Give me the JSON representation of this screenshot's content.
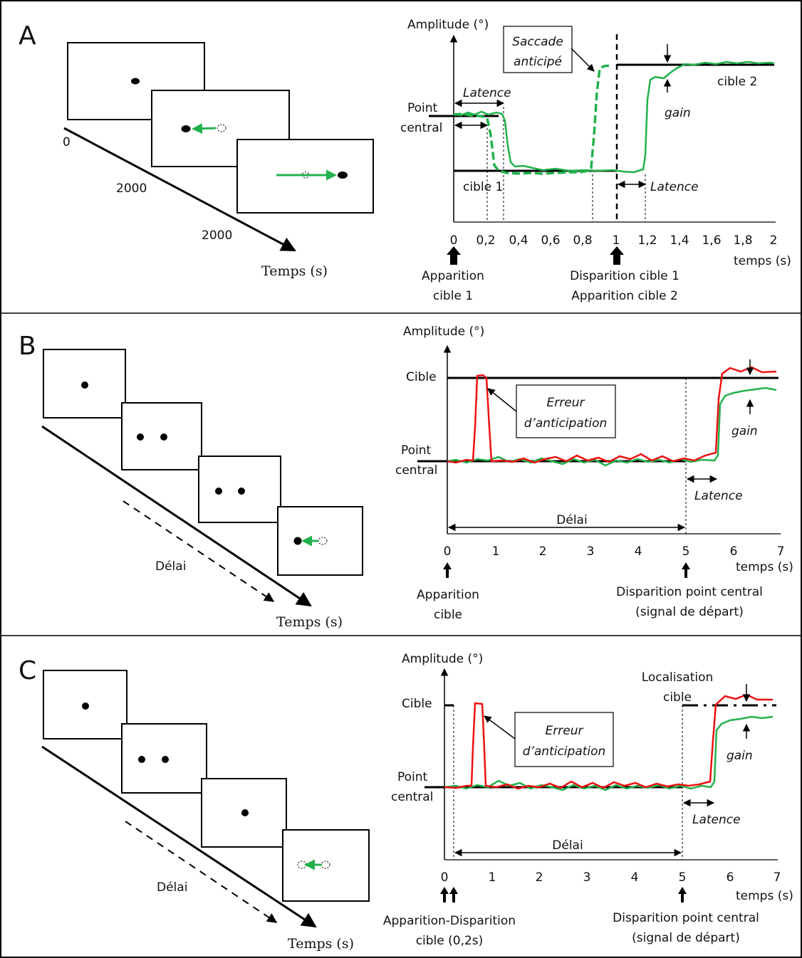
{
  "colors": {
    "green": "#22b14c",
    "red": "#ee1111",
    "black": "#000000"
  },
  "panels": [
    {
      "letter": "A",
      "timeline_label": "Temps (s)",
      "timeline_ticks": [
        "0",
        "2000",
        "2000"
      ],
      "chart": {
        "type": "line",
        "ylabel": "Amplitude (°)",
        "xlabel": "temps (s)",
        "x_ticks": [
          "0",
          "0,2",
          "0,4",
          "0,6",
          "0,8",
          "1",
          "1,2",
          "1,4",
          "1,6",
          "1,8",
          "2"
        ],
        "y_labels": [
          "Point",
          "central"
        ],
        "target1": "cible 1",
        "target2": "cible 2",
        "latency": "Latence",
        "gain": "gain",
        "saccade_box": [
          "Saccade",
          "anticipé"
        ],
        "events": [
          [
            "Apparition",
            "cible 1"
          ],
          [
            "Disparition cible 1",
            "Apparition cible 2"
          ]
        ]
      }
    },
    {
      "letter": "B",
      "timeline_label": "Temps (s)",
      "delay_label": "Délai",
      "chart": {
        "type": "line",
        "ylabel": "Amplitude (°)",
        "xlabel": "temps (s)",
        "x_ticks": [
          "0",
          "1",
          "2",
          "3",
          "4",
          "5",
          "6",
          "7"
        ],
        "target": "Cible",
        "y_labels": [
          "Point",
          "central"
        ],
        "error_box": [
          "Erreur",
          "d’anticipation"
        ],
        "gain": "gain",
        "latency": "Latence",
        "delay": "Délai",
        "events": [
          [
            "Apparition",
            "cible"
          ],
          [
            "Disparition point central",
            "(signal de départ)"
          ]
        ]
      }
    },
    {
      "letter": "C",
      "timeline_label": "Temps (s)",
      "delay_label": "Délai",
      "chart": {
        "type": "line",
        "ylabel": "Amplitude (°)",
        "xlabel": "temps (s)",
        "x_ticks": [
          "0",
          "1",
          "2",
          "3",
          "4",
          "5",
          "6",
          "7"
        ],
        "target": "Cible",
        "y_labels": [
          "Point",
          "central"
        ],
        "localisation": [
          "Localisation",
          "cible"
        ],
        "error_box": [
          "Erreur",
          "d’anticipation"
        ],
        "gain": "gain",
        "latency": "Latence",
        "delay": "Délai",
        "events": [
          [
            "Apparition-Disparition",
            "cible (0,2s)"
          ],
          [
            "Disparition point central",
            "(signal de départ)"
          ]
        ]
      }
    }
  ]
}
